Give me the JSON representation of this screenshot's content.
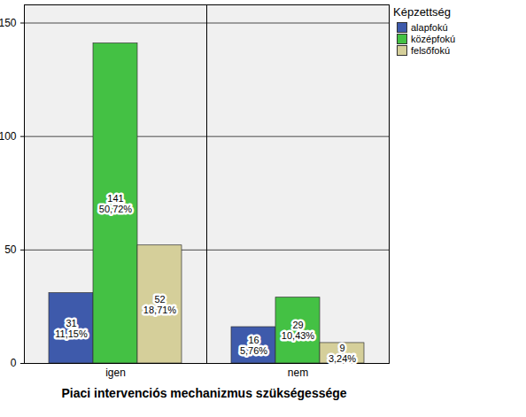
{
  "chart_data": {
    "type": "bar",
    "x_label": "Piaci intervenciós mechanizmus szükségessége",
    "categories": [
      "igen",
      "nem"
    ],
    "series": [
      {
        "name": "alapfokú",
        "color": "#3e5aab",
        "values": [
          31,
          16
        ],
        "value_labels": [
          "31\n11,15%",
          "16\n5,76%"
        ]
      },
      {
        "name": "középfokú",
        "color": "#44c144",
        "values": [
          141,
          29
        ],
        "value_labels": [
          "141\n50,72%",
          "29\n10,43%"
        ]
      },
      {
        "name": "felsőfokú",
        "color": "#d5cf9a",
        "values": [
          52,
          9
        ],
        "value_labels": [
          "52\n18,71%",
          "9\n3,24%"
        ]
      }
    ],
    "ylim": [
      0,
      158
    ],
    "yticks": [
      0,
      50,
      100,
      150
    ],
    "grid": true,
    "legend": "top-right",
    "legend_title": "Képzettség",
    "data_labels": true
  }
}
